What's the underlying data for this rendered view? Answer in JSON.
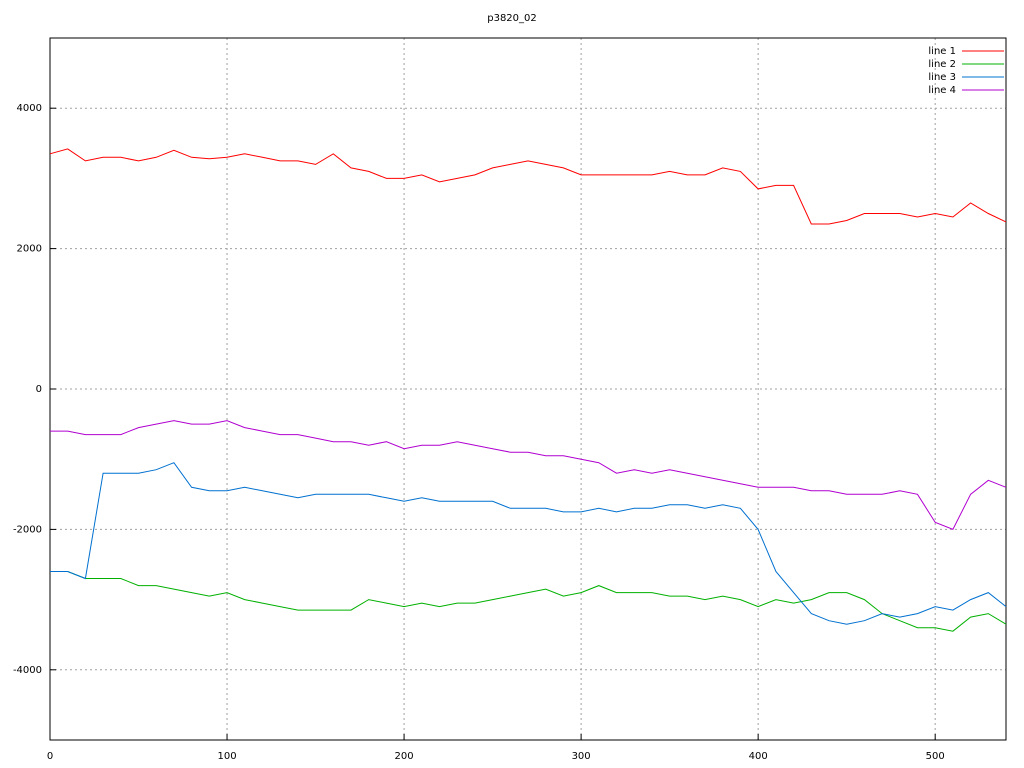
{
  "chart_data": {
    "type": "line",
    "title": "p3820_02",
    "x": [
      0,
      10,
      20,
      30,
      40,
      50,
      60,
      70,
      80,
      90,
      100,
      110,
      120,
      130,
      140,
      150,
      160,
      170,
      180,
      190,
      200,
      210,
      220,
      230,
      240,
      250,
      260,
      270,
      280,
      290,
      300,
      310,
      320,
      330,
      340,
      350,
      360,
      370,
      380,
      390,
      400,
      410,
      420,
      430,
      440,
      450,
      460,
      470,
      480,
      490,
      500,
      510,
      520,
      530,
      540
    ],
    "series": [
      {
        "name": "line 1",
        "color": "#ff0000",
        "values": [
          3350,
          3420,
          3250,
          3300,
          3300,
          3250,
          3300,
          3400,
          3300,
          3280,
          3300,
          3350,
          3300,
          3250,
          3250,
          3200,
          3350,
          3150,
          3100,
          3000,
          3000,
          3050,
          2950,
          3000,
          3050,
          3150,
          3200,
          3250,
          3200,
          3150,
          3050,
          3050,
          3050,
          3050,
          3050,
          3100,
          3050,
          3050,
          3150,
          3100,
          2850,
          2900,
          2900,
          2350,
          2350,
          2400,
          2500,
          2500,
          2500,
          2450,
          2500,
          2450,
          2650,
          2500,
          2380
        ]
      },
      {
        "name": "line 2",
        "color": "#00b000",
        "values": [
          -2600,
          -2600,
          -2700,
          -2700,
          -2700,
          -2800,
          -2800,
          -2850,
          -2900,
          -2950,
          -2900,
          -3000,
          -3050,
          -3100,
          -3150,
          -3150,
          -3150,
          -3150,
          -3000,
          -3050,
          -3100,
          -3050,
          -3100,
          -3050,
          -3050,
          -3000,
          -2950,
          -2900,
          -2850,
          -2950,
          -2900,
          -2800,
          -2900,
          -2900,
          -2900,
          -2950,
          -2950,
          -3000,
          -2950,
          -3000,
          -3100,
          -3000,
          -3050,
          -3000,
          -2900,
          -2900,
          -3000,
          -3200,
          -3300,
          -3400,
          -3400,
          -3450,
          -3250,
          -3200,
          -3350
        ]
      },
      {
        "name": "line 3",
        "color": "#0070d0",
        "values": [
          -2600,
          -2600,
          -2700,
          -1200,
          -1200,
          -1200,
          -1150,
          -1050,
          -1400,
          -1450,
          -1450,
          -1400,
          -1450,
          -1500,
          -1550,
          -1500,
          -1500,
          -1500,
          -1500,
          -1550,
          -1600,
          -1550,
          -1600,
          -1600,
          -1600,
          -1600,
          -1700,
          -1700,
          -1700,
          -1750,
          -1750,
          -1700,
          -1750,
          -1700,
          -1700,
          -1650,
          -1650,
          -1700,
          -1650,
          -1700,
          -2000,
          -2600,
          -2900,
          -3200,
          -3300,
          -3350,
          -3300,
          -3200,
          -3250,
          -3200,
          -3100,
          -3150,
          -3000,
          -2900,
          -3100
        ]
      },
      {
        "name": "line 4",
        "color": "#b000d0",
        "values": [
          -600,
          -600,
          -650,
          -650,
          -650,
          -550,
          -500,
          -450,
          -500,
          -500,
          -450,
          -550,
          -600,
          -650,
          -650,
          -700,
          -750,
          -750,
          -800,
          -750,
          -850,
          -800,
          -800,
          -750,
          -800,
          -850,
          -900,
          -900,
          -950,
          -950,
          -1000,
          -1050,
          -1200,
          -1150,
          -1200,
          -1150,
          -1200,
          -1250,
          -1300,
          -1350,
          -1400,
          -1400,
          -1400,
          -1450,
          -1450,
          -1500,
          -1500,
          -1500,
          -1450,
          -1500,
          -1900,
          -2000,
          -1500,
          -1300,
          -1400
        ]
      }
    ],
    "xlim": [
      0,
      540
    ],
    "ylim": [
      -5000,
      5000
    ],
    "xticks": [
      0,
      100,
      200,
      300,
      400,
      500
    ],
    "yticks": [
      -4000,
      -2000,
      0,
      2000,
      4000
    ],
    "grid": true,
    "legend": "top-right"
  }
}
